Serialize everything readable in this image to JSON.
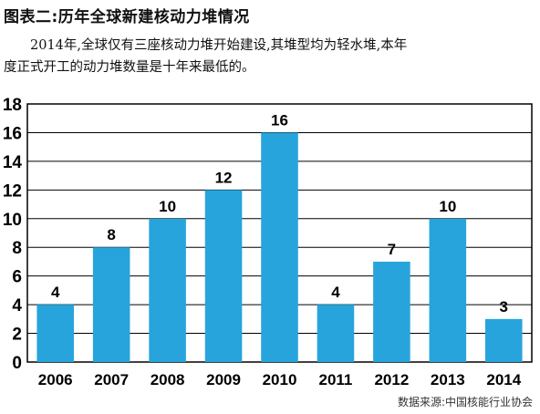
{
  "header": {
    "title": "图表二:历年全球新建核动力堆情况",
    "description_line1": "2014年,全球仅有三座核动力堆开始建设,其堆型均为轻水堆,本年",
    "description_line2": "度正式开工的动力堆数量是十年来最低的。"
  },
  "source": "数据来源:中国核能行业协会",
  "colors": {
    "bar": "#27A4DC",
    "axis": "#000000",
    "grid": "#000000"
  },
  "chart_data": {
    "type": "bar",
    "categories": [
      "2006",
      "2007",
      "2008",
      "2009",
      "2010",
      "2011",
      "2012",
      "2013",
      "2014"
    ],
    "values": [
      4,
      8,
      10,
      12,
      16,
      4,
      7,
      10,
      3
    ],
    "data_labels": [
      "4",
      "8",
      "10",
      "12",
      "16",
      "4",
      "7",
      "10",
      "3"
    ],
    "yticks": [
      0,
      2,
      4,
      6,
      8,
      10,
      12,
      14,
      16,
      18
    ],
    "ylim": [
      0,
      18
    ],
    "grid": true,
    "title": "",
    "xlabel": "",
    "ylabel": ""
  }
}
